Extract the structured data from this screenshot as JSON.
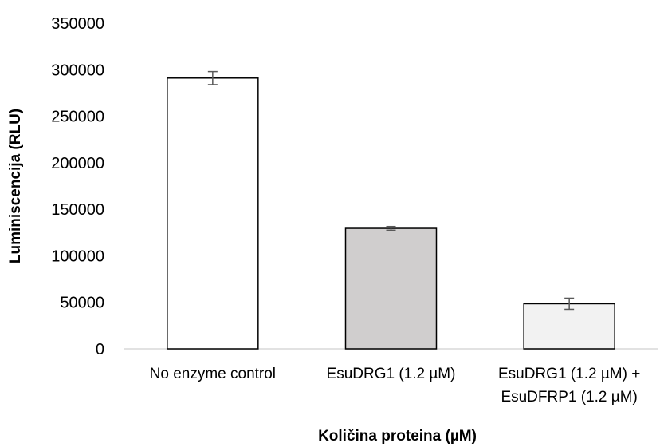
{
  "chart_data": {
    "type": "bar",
    "categories": [
      [
        "No enzyme control"
      ],
      [
        "EsuDRG1 (1.2 µM)"
      ],
      [
        "EsuDRG1 (1.2 µM) +",
        "EsuDFRP1 (1.2 µM)"
      ]
    ],
    "values": [
      291000,
      129500,
      48500
    ],
    "errors": [
      7000,
      2000,
      6000
    ],
    "bar_colors": [
      "#ffffff",
      "#d0cece",
      "#f2f2f2"
    ],
    "bar_stroke": "#000000",
    "error_color": "#595959",
    "ylim": [
      0,
      350000
    ],
    "yticks": [
      "0",
      "50000",
      "100000",
      "150000",
      "200000",
      "250000",
      "300000",
      "350000"
    ],
    "xlabel": "Količina proteina (µM)",
    "ylabel": "Luminiscencija (RLU)",
    "grid": false,
    "legend": "none"
  }
}
